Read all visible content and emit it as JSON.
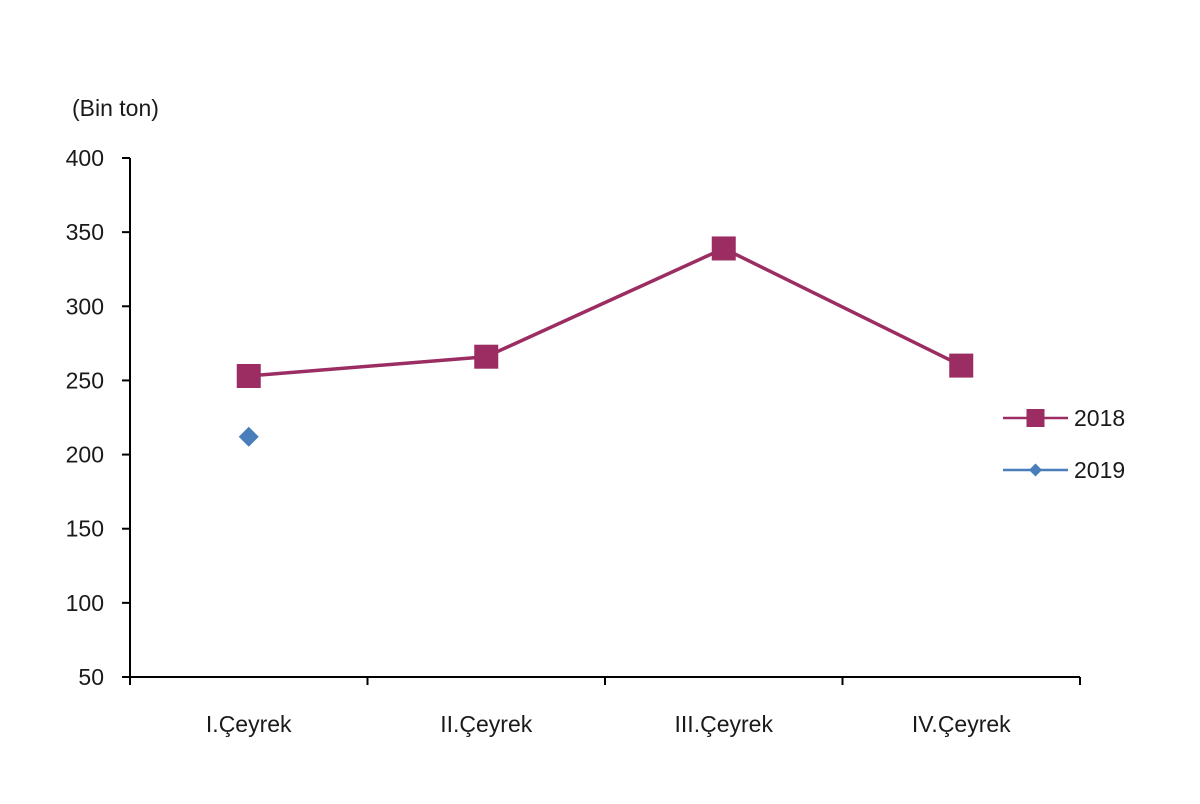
{
  "chart_data": {
    "type": "line",
    "unit_label": "(Bin ton)",
    "categories": [
      "I.Çeyrek",
      "II.Çeyrek",
      "III.Çeyrek",
      "IV.Çeyrek"
    ],
    "series": [
      {
        "name": "2018",
        "values": [
          253,
          266,
          339,
          260
        ],
        "color": "#9b2d62",
        "marker": "square"
      },
      {
        "name": "2019",
        "values": [
          212,
          null,
          null,
          null
        ],
        "color": "#4a7ebb",
        "marker": "diamond"
      }
    ],
    "ylim": [
      50,
      400
    ],
    "yticks": [
      50,
      100,
      150,
      200,
      250,
      300,
      350,
      400
    ],
    "grid": false,
    "legend_position": "right"
  }
}
